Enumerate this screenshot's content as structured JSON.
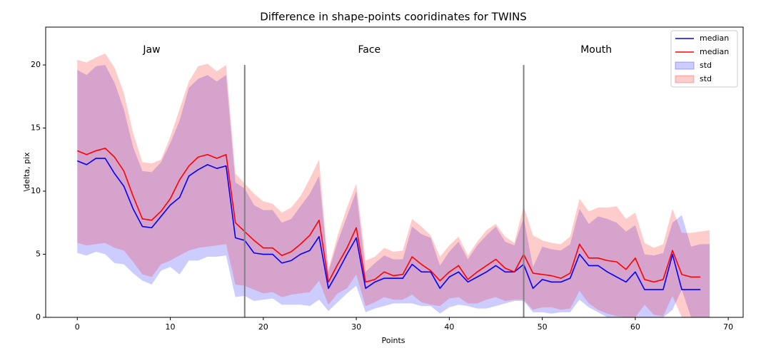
{
  "chart_data": {
    "type": "line",
    "title": "Difference in shape-points cooridinates for TWINS",
    "xlabel": "Points",
    "ylabel": "\\delta, pix",
    "x": [
      0,
      1,
      2,
      3,
      4,
      5,
      6,
      7,
      8,
      9,
      10,
      11,
      12,
      13,
      14,
      15,
      16,
      17,
      18,
      19,
      20,
      21,
      22,
      23,
      24,
      25,
      26,
      27,
      28,
      29,
      30,
      31,
      32,
      33,
      34,
      35,
      36,
      37,
      38,
      39,
      40,
      41,
      42,
      43,
      44,
      45,
      46,
      47,
      48,
      49,
      50,
      51,
      52,
      53,
      54,
      55,
      56,
      57,
      58,
      59,
      60,
      61,
      62,
      63,
      64,
      65,
      66,
      67,
      68
    ],
    "series": [
      {
        "name": "median",
        "kind": "line",
        "color": "#0000ff",
        "values": [
          12.4,
          12.1,
          12.6,
          12.6,
          11.4,
          10.4,
          8.6,
          7.2,
          7.1,
          8.0,
          8.9,
          9.5,
          11.2,
          11.7,
          12.1,
          11.8,
          12.0,
          6.3,
          6.1,
          5.1,
          5.0,
          5.0,
          4.3,
          4.5,
          5.0,
          5.3,
          6.4,
          2.3,
          3.6,
          5.0,
          6.3,
          2.3,
          2.8,
          3.1,
          3.1,
          3.1,
          4.2,
          3.6,
          3.6,
          2.3,
          3.2,
          3.6,
          2.8,
          3.2,
          3.6,
          4.1,
          3.6,
          3.6,
          4.2,
          2.3,
          3.0,
          2.8,
          2.8,
          3.1,
          5.0,
          4.1,
          4.1,
          3.6,
          3.2,
          2.8,
          3.6,
          2.2,
          2.2,
          2.2,
          5.0,
          2.2,
          2.2,
          2.2,
          null
        ]
      },
      {
        "name": "median",
        "kind": "line",
        "color": "#ff0000",
        "values": [
          13.2,
          12.9,
          13.2,
          13.4,
          12.7,
          11.6,
          9.6,
          7.8,
          7.7,
          8.4,
          9.4,
          10.9,
          12.0,
          12.7,
          12.9,
          12.6,
          12.9,
          7.5,
          6.8,
          6.1,
          5.5,
          5.5,
          4.9,
          5.2,
          5.8,
          6.5,
          7.7,
          2.8,
          4.2,
          5.5,
          7.1,
          2.8,
          3.0,
          3.6,
          3.3,
          3.4,
          4.8,
          4.2,
          3.7,
          2.9,
          3.6,
          4.1,
          3.0,
          3.6,
          4.1,
          4.6,
          3.9,
          3.6,
          5.0,
          3.5,
          3.4,
          3.3,
          3.1,
          3.5,
          5.8,
          4.7,
          4.7,
          4.5,
          4.4,
          3.8,
          4.7,
          3.0,
          2.8,
          3.0,
          5.3,
          3.4,
          3.2,
          3.2,
          null
        ]
      },
      {
        "name": "std",
        "kind": "band",
        "color": "#0000ff",
        "upper": [
          19.6,
          19.2,
          19.9,
          20.0,
          18.6,
          16.5,
          13.5,
          11.6,
          11.5,
          12.3,
          13.8,
          15.6,
          18.2,
          18.9,
          19.2,
          18.7,
          19.2,
          10.7,
          10.2,
          8.9,
          8.5,
          8.5,
          7.5,
          7.8,
          8.8,
          9.8,
          11.2,
          3.6,
          6.0,
          8.0,
          10.0,
          3.6,
          4.3,
          4.9,
          4.6,
          4.6,
          7.2,
          6.6,
          6.3,
          4.1,
          5.2,
          6.0,
          4.6,
          5.7,
          6.5,
          7.2,
          6.0,
          5.7,
          7.9,
          4.0,
          5.6,
          5.4,
          5.3,
          5.8,
          8.6,
          7.4,
          8.0,
          7.8,
          7.5,
          6.8,
          7.3,
          5.0,
          4.9,
          5.1,
          7.5,
          8.1,
          5.6,
          5.8,
          5.8
        ],
        "lower": [
          5.1,
          4.9,
          5.2,
          5.0,
          4.3,
          4.2,
          3.5,
          2.9,
          2.6,
          3.7,
          4.0,
          3.4,
          4.5,
          4.5,
          4.8,
          4.8,
          4.9,
          1.6,
          1.7,
          1.3,
          1.4,
          1.5,
          1.0,
          1.0,
          1.0,
          0.9,
          1.4,
          0.5,
          1.2,
          1.9,
          2.5,
          0.4,
          0.7,
          0.9,
          1.1,
          1.1,
          1.1,
          0.9,
          0.9,
          0.3,
          0.8,
          1.0,
          0.9,
          0.7,
          0.7,
          0.9,
          1.1,
          1.3,
          1.3,
          0.4,
          0.4,
          0.3,
          0.4,
          0.4,
          1.4,
          0.8,
          0.4,
          0.0,
          0.0,
          0.0,
          0.0,
          0.0,
          0.0,
          0.0,
          0.6,
          2.2,
          0.0,
          0.0,
          0.0
        ]
      },
      {
        "name": "std",
        "kind": "band",
        "color": "#ff0000",
        "upper": [
          20.4,
          20.2,
          20.6,
          20.9,
          19.8,
          17.8,
          14.6,
          12.3,
          12.2,
          12.5,
          14.3,
          16.5,
          18.7,
          19.9,
          20.1,
          19.5,
          20.0,
          11.4,
          10.6,
          9.8,
          9.2,
          9.0,
          8.3,
          8.7,
          9.6,
          11.0,
          12.5,
          3.8,
          6.5,
          8.7,
          10.6,
          4.5,
          4.8,
          5.5,
          5.2,
          5.3,
          7.8,
          7.2,
          6.5,
          4.8,
          5.7,
          6.4,
          4.9,
          6.0,
          6.9,
          7.4,
          6.4,
          5.9,
          8.8,
          6.5,
          6.1,
          5.9,
          5.8,
          6.4,
          9.4,
          8.4,
          8.7,
          8.7,
          8.8,
          7.8,
          8.3,
          5.9,
          5.5,
          5.8,
          8.6,
          6.7,
          6.7,
          6.8,
          6.9
        ],
        "lower": [
          5.9,
          5.7,
          5.8,
          5.9,
          5.5,
          5.3,
          4.4,
          3.4,
          3.2,
          4.2,
          4.5,
          4.9,
          5.3,
          5.5,
          5.6,
          5.7,
          5.8,
          2.6,
          2.5,
          2.2,
          1.9,
          2.0,
          1.6,
          1.8,
          1.9,
          2.0,
          2.9,
          1.0,
          1.9,
          2.3,
          3.4,
          0.9,
          1.2,
          1.6,
          1.4,
          1.4,
          1.8,
          1.2,
          1.0,
          0.9,
          1.5,
          1.6,
          1.1,
          1.1,
          1.4,
          1.6,
          1.3,
          1.4,
          1.4,
          0.6,
          0.8,
          0.8,
          0.6,
          0.7,
          2.1,
          1.1,
          0.6,
          0.3,
          0.1,
          0.0,
          0.0,
          1.0,
          0.2,
          0.1,
          1.7,
          0.0,
          0.0,
          0.0,
          0.0
        ]
      }
    ],
    "vlines": [
      {
        "x": 18,
        "ymax": 20
      },
      {
        "x": 48,
        "ymax": 20
      }
    ],
    "annotations": [
      {
        "text": "Jaw",
        "x": 8,
        "y": 21.2
      },
      {
        "text": "Face",
        "x": 31.4,
        "y": 21.2
      },
      {
        "text": "Mouth",
        "x": 55.8,
        "y": 21.2
      }
    ],
    "xlim": [
      -3.4,
      71.6
    ],
    "ylim": [
      0,
      23
    ],
    "xticks": [
      0,
      10,
      20,
      30,
      40,
      50,
      60,
      70
    ],
    "yticks": [
      0,
      5,
      10,
      15,
      20
    ],
    "legend": "upper right"
  }
}
